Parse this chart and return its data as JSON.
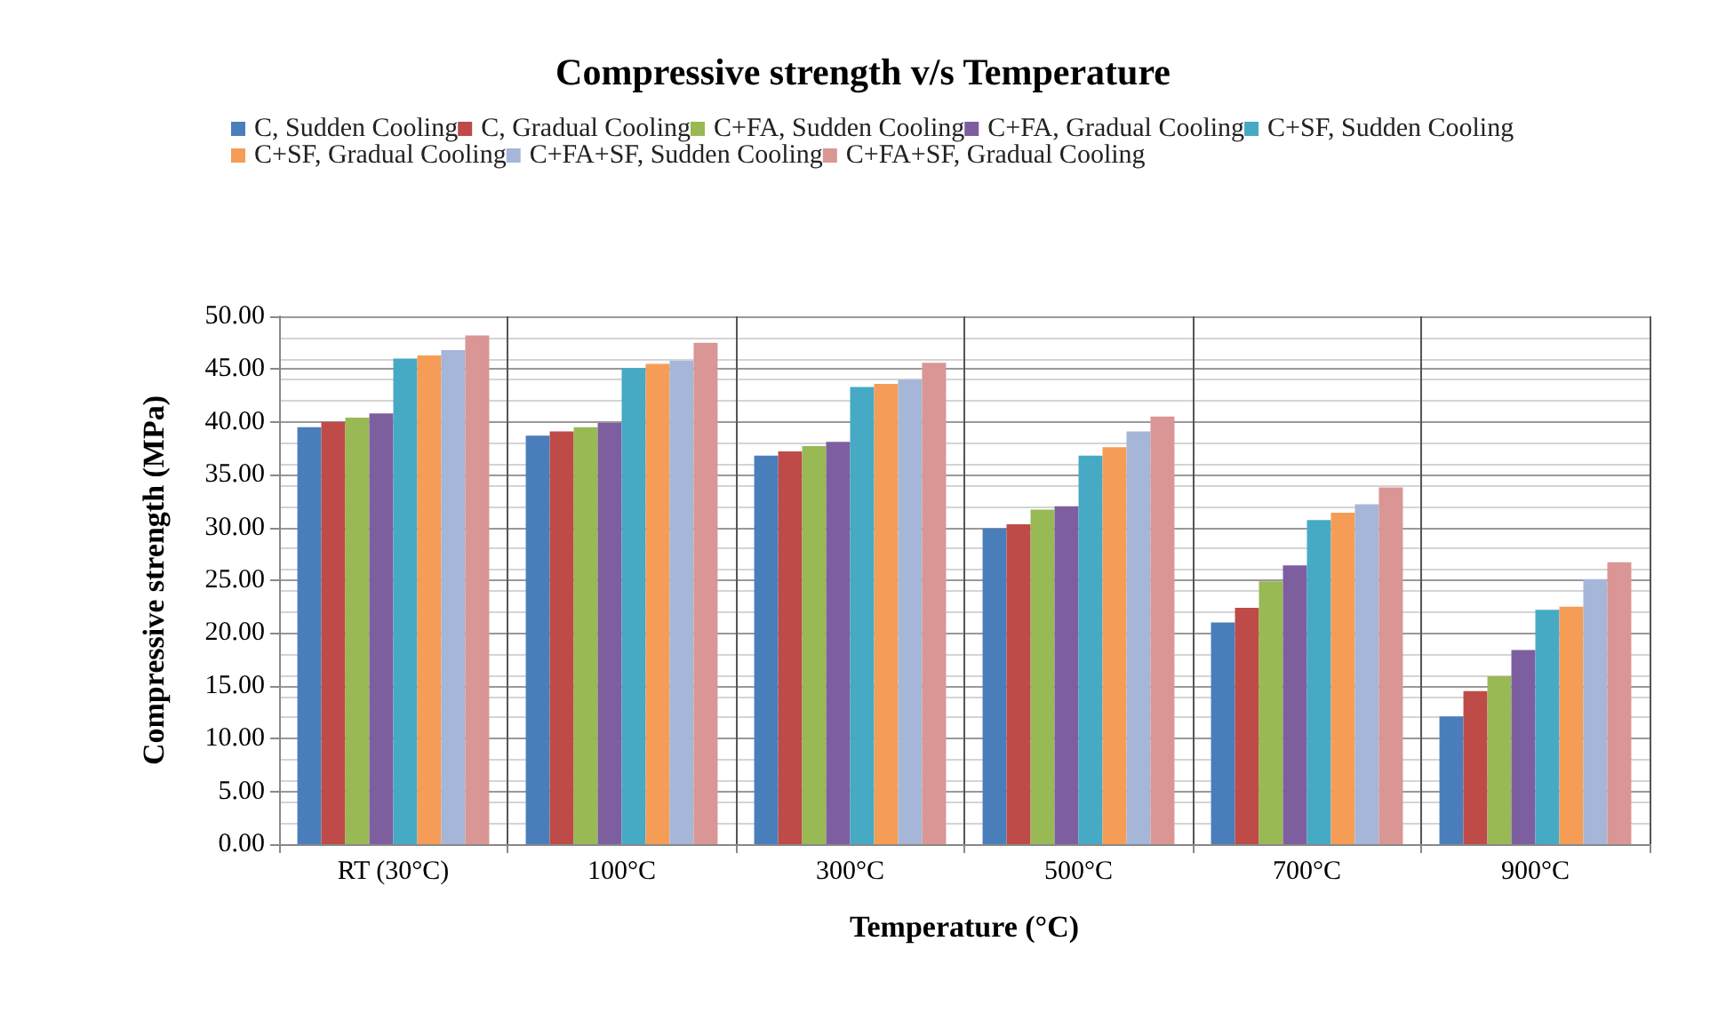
{
  "chart_data": {
    "type": "bar",
    "title": "Compressive strength v/s Temperature",
    "xlabel": "Temperature (°C)",
    "ylabel": "Compressive strength (MPa)",
    "categories": [
      "RT (30°C)",
      "100°C",
      "300°C",
      "500°C",
      "700°C",
      "900°C"
    ],
    "series": [
      {
        "name": "C, Sudden Cooling",
        "color": "#4a7ebb",
        "values": [
          39.5,
          38.7,
          36.8,
          29.9,
          21.0,
          12.1
        ]
      },
      {
        "name": "C, Gradual Cooling",
        "color": "#be4b48",
        "values": [
          40.0,
          39.1,
          37.2,
          30.3,
          22.4,
          14.5
        ]
      },
      {
        "name": "C+FA, Sudden Cooling",
        "color": "#98b954",
        "values": [
          40.4,
          39.5,
          37.7,
          31.7,
          24.9,
          15.9
        ]
      },
      {
        "name": "C+FA, Gradual Cooling",
        "color": "#7d5fa0",
        "values": [
          40.8,
          39.9,
          38.1,
          32.0,
          26.4,
          18.4
        ]
      },
      {
        "name": "C+SF, Sudden Cooling",
        "color": "#46aac5",
        "values": [
          46.0,
          45.1,
          43.3,
          36.8,
          30.7,
          22.2
        ]
      },
      {
        "name": "C+SF, Gradual Cooling",
        "color": "#f59d56",
        "values": [
          46.3,
          45.5,
          43.6,
          37.6,
          31.4,
          22.5
        ]
      },
      {
        "name": "C+FA+SF, Sudden Cooling",
        "color": "#a5b6d9",
        "values": [
          46.8,
          45.8,
          44.0,
          39.1,
          32.2,
          25.1
        ]
      },
      {
        "name": "C+FA+SF, Gradual Cooling",
        "color": "#d99694",
        "values": [
          48.2,
          47.5,
          45.6,
          40.5,
          33.8,
          26.7
        ]
      }
    ],
    "ylim": [
      0,
      50
    ],
    "yticks": [
      {
        "value": 0,
        "label": "0.00"
      },
      {
        "value": 5,
        "label": "5.00"
      },
      {
        "value": 10,
        "label": "10.00"
      },
      {
        "value": 15,
        "label": "15.00"
      },
      {
        "value": 20,
        "label": "20.00"
      },
      {
        "value": 25,
        "label": "25.00"
      },
      {
        "value": 30,
        "label": "30.00"
      },
      {
        "value": 35,
        "label": "35.00"
      },
      {
        "value": 40,
        "label": "40.00"
      },
      {
        "value": 45,
        "label": "45.00"
      },
      {
        "value": 50,
        "label": "50.00"
      }
    ],
    "grid": true,
    "legend": "top"
  }
}
